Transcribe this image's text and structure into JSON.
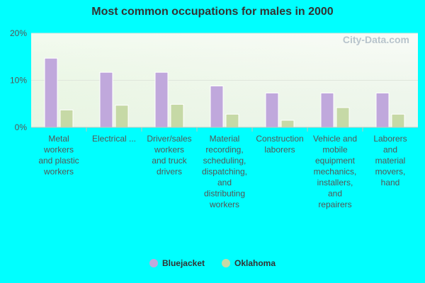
{
  "chart_data": {
    "type": "bar",
    "title": "Most common occupations for males in 2000",
    "categories": [
      [
        "Metal",
        "workers",
        "and plastic",
        "workers"
      ],
      [
        "Electrical ..."
      ],
      [
        "Driver/sales",
        "workers",
        "and truck",
        "drivers"
      ],
      [
        "Material",
        "recording,",
        "scheduling,",
        "dispatching,",
        "and",
        "distributing",
        "workers"
      ],
      [
        "Construction",
        "laborers"
      ],
      [
        "Vehicle and",
        "mobile",
        "equipment",
        "mechanics,",
        "installers,",
        "and",
        "repairers"
      ],
      [
        "Laborers",
        "and",
        "material",
        "movers,",
        "hand"
      ]
    ],
    "series": [
      {
        "name": "Bluejacket",
        "color": "#c0a8dc",
        "values": [
          14.7,
          11.7,
          11.7,
          8.8,
          7.3,
          7.3,
          7.3
        ]
      },
      {
        "name": "Oklahoma",
        "color": "#c6d9a6",
        "values": [
          3.7,
          4.7,
          4.9,
          2.8,
          1.5,
          4.2,
          2.8
        ]
      }
    ],
    "ylim": [
      0,
      20
    ],
    "yticks": [
      {
        "value": 0,
        "label": "0%"
      },
      {
        "value": 10,
        "label": "10%"
      },
      {
        "value": 20,
        "label": "20%"
      }
    ],
    "grid": true,
    "legend_position": "bottom"
  },
  "watermark": "City-Data.com"
}
